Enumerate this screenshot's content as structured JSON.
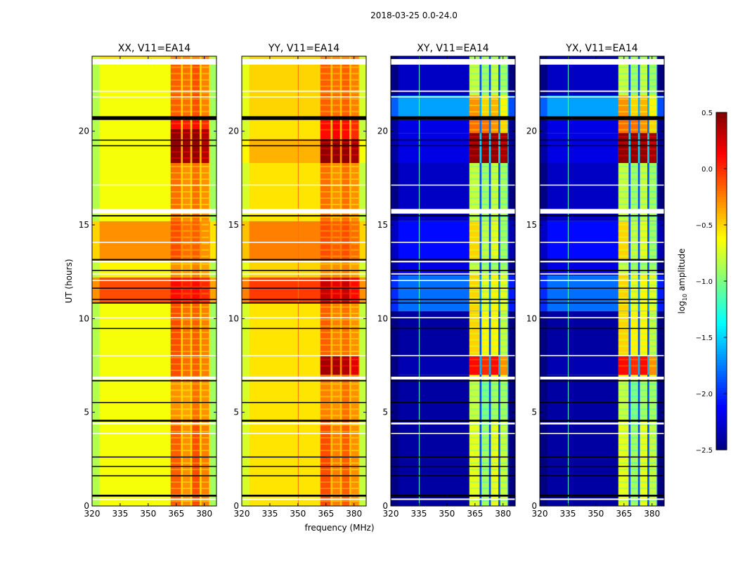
{
  "chart_data": {
    "type": "heatmap",
    "title": "2018-03-25 0.0-24.0",
    "xlabel": "frequency (MHz)",
    "ylabel": "UT (hours)",
    "xlim": [
      320,
      386.5
    ],
    "ylim": [
      0,
      24
    ],
    "xticks": [
      320,
      335,
      350,
      365,
      380
    ],
    "yticks": [
      0,
      5,
      10,
      15,
      20
    ],
    "band_edges_mhz": [
      [
        362,
        367.5
      ],
      [
        368.5,
        372.5
      ],
      [
        373.5,
        377.5
      ],
      [
        378.5,
        382.5
      ]
    ],
    "colorbar": {
      "label_main": "log",
      "label_sub": "10",
      "label_rest": " amplitude",
      "range": [
        -2.5,
        0.5
      ],
      "ticks": [
        "0.5",
        "0.0",
        "−0.5",
        "−1.0",
        "−1.5",
        "−2.0",
        "−2.5"
      ],
      "tick_values": [
        0.5,
        0.0,
        -0.5,
        -1.0,
        -1.5,
        -2.0,
        -2.5
      ],
      "colormap": "jet"
    },
    "flagged_white_hours": [
      [
        23.55,
        23.85
      ],
      [
        22.1,
        22.17
      ],
      [
        21.8,
        21.86
      ],
      [
        17.1,
        17.15
      ],
      [
        15.6,
        15.85
      ],
      [
        14.05,
        14.1
      ],
      [
        13.0,
        13.08
      ],
      [
        12.35,
        12.42
      ],
      [
        12.0,
        12.06
      ],
      [
        10.02,
        10.08
      ],
      [
        8.0,
        8.05
      ],
      [
        6.75,
        6.9
      ],
      [
        4.35,
        4.45
      ],
      [
        3.85,
        3.9
      ],
      [
        0.32,
        0.4
      ]
    ],
    "flagged_black_hours": [
      [
        20.6,
        20.8
      ],
      [
        19.5,
        19.55
      ],
      [
        19.2,
        19.25
      ],
      [
        15.45,
        15.52
      ],
      [
        13.1,
        13.18
      ],
      [
        12.55,
        12.6
      ],
      [
        11.6,
        11.65
      ],
      [
        11.0,
        11.05
      ],
      [
        10.8,
        10.86
      ],
      [
        9.45,
        9.5
      ],
      [
        6.65,
        6.72
      ],
      [
        5.5,
        5.55
      ],
      [
        4.5,
        4.6
      ],
      [
        2.6,
        2.64
      ],
      [
        2.1,
        2.14
      ],
      [
        1.6,
        1.64
      ],
      [
        0.5,
        0.6
      ]
    ],
    "panels": [
      {
        "title": "XX, V11=EA14",
        "vline": null,
        "segments": [
          {
            "t": [
              0,
              4.5
            ],
            "bg": -0.65,
            "gap": -0.5,
            "band": [
              -0.15,
              -0.3,
              -0.1,
              -0.25
            ]
          },
          {
            "t": [
              4.5,
              6.7
            ],
            "bg": -0.65,
            "gap": -0.5,
            "band": [
              -0.3,
              -0.35,
              -0.2,
              -0.3
            ]
          },
          {
            "t": [
              6.7,
              10.8
            ],
            "bg": -0.65,
            "gap": -0.5,
            "band": [
              -0.1,
              -0.2,
              -0.15,
              -0.25
            ]
          },
          {
            "t": [
              10.8,
              12.2
            ],
            "bg": -0.1,
            "gap": -0.05,
            "band": [
              0.1,
              0.05,
              0.1,
              0.0
            ]
          },
          {
            "t": [
              12.2,
              13.1
            ],
            "bg": -0.6,
            "gap": -0.5,
            "band": [
              -0.3,
              -0.35,
              -0.25,
              -0.35
            ]
          },
          {
            "t": [
              13.1,
              15.2
            ],
            "bg": -0.3,
            "gap": -0.3,
            "band": [
              -0.1,
              -0.2,
              -0.15,
              -0.3
            ]
          },
          {
            "t": [
              15.2,
              18.3
            ],
            "bg": -0.65,
            "gap": -0.5,
            "band": [
              -0.2,
              -0.3,
              -0.2,
              -0.3
            ]
          },
          {
            "t": [
              18.3,
              20.1
            ],
            "bg": -0.65,
            "gap": -0.4,
            "band": [
              0.45,
              0.4,
              0.45,
              0.35
            ]
          },
          {
            "t": [
              20.1,
              20.6
            ],
            "bg": -0.65,
            "gap": -0.5,
            "band": [
              0.1,
              0.05,
              0.1,
              0.0
            ]
          },
          {
            "t": [
              20.8,
              23.6
            ],
            "bg": -0.65,
            "gap": -0.5,
            "band": [
              -0.15,
              -0.2,
              -0.1,
              -0.25
            ]
          },
          {
            "t": [
              23.85,
              24
            ],
            "bg": -0.55,
            "gap": -0.5,
            "band": [
              -0.3,
              -0.3,
              -0.3,
              -0.3
            ]
          }
        ]
      },
      {
        "title": "YY, V11=EA14",
        "vline": {
          "freq": 350,
          "value": -0.2
        },
        "segments": [
          {
            "t": [
              0,
              4.5
            ],
            "bg": -0.55,
            "gap": -0.45,
            "band": [
              -0.1,
              -0.25,
              -0.15,
              -0.3
            ]
          },
          {
            "t": [
              4.5,
              6.7
            ],
            "bg": -0.55,
            "gap": -0.45,
            "band": [
              -0.25,
              -0.3,
              -0.2,
              -0.3
            ]
          },
          {
            "t": [
              6.7,
              7.0
            ],
            "bg": -0.55,
            "gap": -0.45,
            "band": [
              -0.2,
              -0.3,
              -0.2,
              -0.3
            ]
          },
          {
            "t": [
              7.0,
              8.0
            ],
            "bg": -0.55,
            "gap": -0.3,
            "band": [
              0.4,
              0.4,
              0.35,
              0.2
            ]
          },
          {
            "t": [
              8.0,
              10.8
            ],
            "bg": -0.55,
            "gap": -0.45,
            "band": [
              -0.15,
              -0.25,
              -0.2,
              -0.3
            ]
          },
          {
            "t": [
              10.8,
              12.2
            ],
            "bg": -0.05,
            "gap": 0.0,
            "band": [
              0.3,
              0.2,
              0.3,
              0.1
            ]
          },
          {
            "t": [
              12.2,
              13.1
            ],
            "bg": -0.5,
            "gap": -0.45,
            "band": [
              -0.3,
              -0.3,
              -0.25,
              -0.35
            ]
          },
          {
            "t": [
              13.1,
              15.2
            ],
            "bg": -0.25,
            "gap": -0.25,
            "band": [
              -0.1,
              -0.15,
              -0.1,
              -0.2
            ]
          },
          {
            "t": [
              15.2,
              18.3
            ],
            "bg": -0.55,
            "gap": -0.45,
            "band": [
              -0.2,
              -0.3,
              -0.2,
              -0.3
            ]
          },
          {
            "t": [
              18.3,
              19.6
            ],
            "bg": -0.4,
            "gap": -0.3,
            "band": [
              0.45,
              0.45,
              0.45,
              0.4
            ]
          },
          {
            "t": [
              19.6,
              20.6
            ],
            "bg": -0.55,
            "gap": -0.45,
            "band": [
              0.1,
              0.15,
              0.1,
              0.0
            ]
          },
          {
            "t": [
              20.8,
              23.6
            ],
            "bg": -0.5,
            "gap": -0.45,
            "band": [
              -0.15,
              -0.2,
              -0.15,
              -0.25
            ]
          },
          {
            "t": [
              23.85,
              24
            ],
            "bg": -0.5,
            "gap": -0.45,
            "band": [
              -0.3,
              -0.3,
              -0.3,
              -0.3
            ]
          }
        ]
      },
      {
        "title": "XY, V11=EA14",
        "vline": {
          "freq": 335,
          "value": -1.2
        },
        "segments": [
          {
            "t": [
              0,
              4.5
            ],
            "bg": -2.4,
            "gap": -1.9,
            "band": [
              -0.7,
              -0.9,
              -0.7,
              -0.8
            ]
          },
          {
            "t": [
              4.5,
              6.7
            ],
            "bg": -2.4,
            "gap": -1.9,
            "band": [
              -0.8,
              -1.0,
              -0.9,
              -0.9
            ]
          },
          {
            "t": [
              6.7,
              7.0
            ],
            "bg": -2.4,
            "gap": -1.9,
            "band": [
              -0.6,
              -0.7,
              -0.6,
              -0.7
            ]
          },
          {
            "t": [
              7.0,
              8.0
            ],
            "bg": -2.35,
            "gap": -1.6,
            "band": [
              0.1,
              0.0,
              0.1,
              -0.3
            ]
          },
          {
            "t": [
              8.0,
              10.4
            ],
            "bg": -2.4,
            "gap": -1.9,
            "band": [
              -0.5,
              -0.6,
              -0.6,
              -0.8
            ]
          },
          {
            "t": [
              10.4,
              12.3
            ],
            "bg": -1.8,
            "gap": -1.7,
            "band": [
              -0.5,
              -0.7,
              -0.6,
              -0.7
            ]
          },
          {
            "t": [
              12.3,
              13.1
            ],
            "bg": -2.2,
            "gap": -1.9,
            "band": [
              -0.8,
              -0.9,
              -0.9,
              -0.9
            ]
          },
          {
            "t": [
              13.1,
              15.2
            ],
            "bg": -2.1,
            "gap": -1.9,
            "band": [
              -0.5,
              -0.8,
              -0.7,
              -0.9
            ]
          },
          {
            "t": [
              15.2,
              18.3
            ],
            "bg": -2.3,
            "gap": -1.9,
            "band": [
              -0.8,
              -0.9,
              -0.8,
              -0.9
            ]
          },
          {
            "t": [
              18.3,
              19.9
            ],
            "bg": -2.2,
            "gap": -1.5,
            "band": [
              0.45,
              0.45,
              0.45,
              0.4
            ]
          },
          {
            "t": [
              19.9,
              20.6
            ],
            "bg": -2.2,
            "gap": -1.8,
            "band": [
              -0.2,
              -0.2,
              -0.3,
              -0.5
            ]
          },
          {
            "t": [
              20.8,
              21.9
            ],
            "bg": -1.65,
            "gap": -1.6,
            "band": [
              -0.3,
              -0.5,
              -0.4,
              -0.6
            ]
          },
          {
            "t": [
              21.9,
              23.6
            ],
            "bg": -2.3,
            "gap": -1.9,
            "band": [
              -0.8,
              -0.9,
              -0.8,
              -0.9
            ]
          },
          {
            "t": [
              23.85,
              24
            ],
            "bg": -2.3,
            "gap": -1.9,
            "band": [
              -0.9,
              -0.9,
              -0.9,
              -0.9
            ]
          }
        ]
      },
      {
        "title": "YX, V11=EA14",
        "vline": {
          "freq": 335,
          "value": -1.2
        },
        "segments": [
          {
            "t": [
              0,
              4.5
            ],
            "bg": -2.4,
            "gap": -1.9,
            "band": [
              -0.7,
              -0.9,
              -0.7,
              -0.8
            ]
          },
          {
            "t": [
              4.5,
              6.7
            ],
            "bg": -2.4,
            "gap": -1.9,
            "band": [
              -0.8,
              -1.0,
              -0.9,
              -0.9
            ]
          },
          {
            "t": [
              6.7,
              7.0
            ],
            "bg": -2.4,
            "gap": -1.9,
            "band": [
              -0.6,
              -0.7,
              -0.6,
              -0.7
            ]
          },
          {
            "t": [
              7.0,
              8.0
            ],
            "bg": -2.35,
            "gap": -1.6,
            "band": [
              0.1,
              0.0,
              0.1,
              -0.3
            ]
          },
          {
            "t": [
              8.0,
              10.4
            ],
            "bg": -2.4,
            "gap": -1.9,
            "band": [
              -0.5,
              -0.6,
              -0.6,
              -0.8
            ]
          },
          {
            "t": [
              10.4,
              12.3
            ],
            "bg": -1.8,
            "gap": -1.7,
            "band": [
              -0.5,
              -0.7,
              -0.6,
              -0.7
            ]
          },
          {
            "t": [
              12.3,
              13.1
            ],
            "bg": -2.2,
            "gap": -1.9,
            "band": [
              -0.8,
              -0.9,
              -0.9,
              -0.9
            ]
          },
          {
            "t": [
              13.1,
              15.2
            ],
            "bg": -2.1,
            "gap": -1.9,
            "band": [
              -0.5,
              -0.8,
              -0.7,
              -0.9
            ]
          },
          {
            "t": [
              15.2,
              18.3
            ],
            "bg": -2.3,
            "gap": -1.9,
            "band": [
              -0.8,
              -0.9,
              -0.8,
              -0.9
            ]
          },
          {
            "t": [
              18.3,
              19.9
            ],
            "bg": -2.2,
            "gap": -1.5,
            "band": [
              0.45,
              0.45,
              0.45,
              0.4
            ]
          },
          {
            "t": [
              19.9,
              20.6
            ],
            "bg": -2.2,
            "gap": -1.8,
            "band": [
              -0.2,
              -0.2,
              -0.3,
              -0.5
            ]
          },
          {
            "t": [
              20.8,
              21.9
            ],
            "bg": -1.65,
            "gap": -1.6,
            "band": [
              -0.3,
              -0.5,
              -0.4,
              -0.6
            ]
          },
          {
            "t": [
              21.9,
              23.6
            ],
            "bg": -2.3,
            "gap": -1.9,
            "band": [
              -0.8,
              -0.9,
              -0.8,
              -0.9
            ]
          },
          {
            "t": [
              23.85,
              24
            ],
            "bg": -2.3,
            "gap": -1.9,
            "band": [
              -0.9,
              -0.9,
              -0.9,
              -0.9
            ]
          }
        ]
      }
    ]
  }
}
